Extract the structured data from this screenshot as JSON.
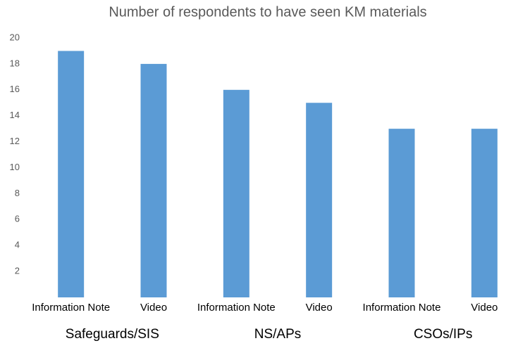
{
  "chart_data": {
    "type": "bar",
    "title": "Number of respondents to have seen KM materials",
    "categories": [
      "Information Note",
      "Video",
      "Information Note",
      "Video",
      "Information Note",
      "Video"
    ],
    "groups": [
      "Safeguards/SIS",
      "NS/APs",
      "CSOs/IPs"
    ],
    "values": [
      19,
      18,
      16,
      15,
      13,
      13
    ],
    "color": "#5b9bd5",
    "ylim": [
      0,
      20
    ],
    "yticks": [
      2,
      4,
      6,
      8,
      10,
      12,
      14,
      16,
      18,
      20
    ],
    "grid": false
  }
}
